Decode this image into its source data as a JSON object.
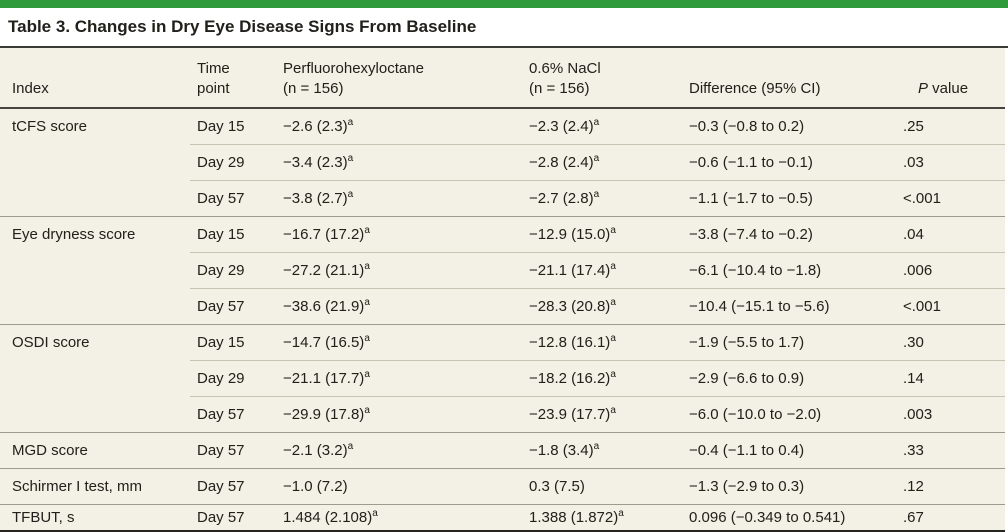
{
  "page": {
    "brand_bar_color": "#2e9a3c",
    "background_color": "#f3f0e5",
    "text_color": "#21201a"
  },
  "table": {
    "title": "Table 3. Changes in Dry Eye Disease Signs From Baseline",
    "columns": {
      "index": "Index",
      "time_line1": "Time",
      "time_line2": "point",
      "pfho_line1": "Perfluorohexyloctane",
      "pfho_line2": "(n = 156)",
      "nacl_line1": "0.6% NaCl",
      "nacl_line2": "(n = 156)",
      "diff": "Difference (95% CI)",
      "p_italic": "P",
      "p_rest": " value"
    },
    "rows": [
      {
        "index": "tCFS score",
        "time": "Day 15",
        "pfho": "−2.6 (2.3)",
        "pfho_sup": "a",
        "nacl": "−2.3 (2.4)",
        "nacl_sup": "a",
        "diff": "−0.3 (−0.8 to 0.2)",
        "p": ".25"
      },
      {
        "index": "",
        "time": "Day 29",
        "pfho": "−3.4 (2.3)",
        "pfho_sup": "a",
        "nacl": "−2.8 (2.4)",
        "nacl_sup": "a",
        "diff": "−0.6 (−1.1 to −0.1)",
        "p": ".03"
      },
      {
        "index": "",
        "time": "Day 57",
        "pfho": "−3.8 (2.7)",
        "pfho_sup": "a",
        "nacl": "−2.7 (2.8)",
        "nacl_sup": "a",
        "diff": "−1.1 (−1.7 to −0.5)",
        "p": "<.001"
      },
      {
        "index": "Eye dryness score",
        "time": "Day 15",
        "pfho": "−16.7 (17.2)",
        "pfho_sup": "a",
        "nacl": "−12.9 (15.0)",
        "nacl_sup": "a",
        "diff": "−3.8 (−7.4 to −0.2)",
        "p": ".04"
      },
      {
        "index": "",
        "time": "Day 29",
        "pfho": "−27.2 (21.1)",
        "pfho_sup": "a",
        "nacl": "−21.1 (17.4)",
        "nacl_sup": "a",
        "diff": "−6.1 (−10.4 to −1.8)",
        "p": ".006"
      },
      {
        "index": "",
        "time": "Day 57",
        "pfho": "−38.6 (21.9)",
        "pfho_sup": "a",
        "nacl": "−28.3 (20.8)",
        "nacl_sup": "a",
        "diff": "−10.4 (−15.1 to −5.6)",
        "p": "<.001"
      },
      {
        "index": "OSDI score",
        "time": "Day 15",
        "pfho": "−14.7 (16.5)",
        "pfho_sup": "a",
        "nacl": "−12.8 (16.1)",
        "nacl_sup": "a",
        "diff": "−1.9 (−5.5 to 1.7)",
        "p": ".30"
      },
      {
        "index": "",
        "time": "Day 29",
        "pfho": "−21.1 (17.7)",
        "pfho_sup": "a",
        "nacl": "−18.2 (16.2)",
        "nacl_sup": "a",
        "diff": "−2.9 (−6.6 to 0.9)",
        "p": ".14"
      },
      {
        "index": "",
        "time": "Day 57",
        "pfho": "−29.9 (17.8)",
        "pfho_sup": "a",
        "nacl": "−23.9 (17.7)",
        "nacl_sup": "a",
        "diff": "−6.0 (−10.0 to −2.0)",
        "p": ".003"
      },
      {
        "index": "MGD score",
        "time": "Day 57",
        "pfho": "−2.1 (3.2)",
        "pfho_sup": "a",
        "nacl": "−1.8 (3.4)",
        "nacl_sup": "a",
        "diff": "−0.4 (−1.1 to 0.4)",
        "p": ".33"
      },
      {
        "index": "Schirmer I test, mm",
        "time": "Day 57",
        "pfho": "−1.0 (7.2)",
        "pfho_sup": "",
        "nacl": "0.3 (7.5)",
        "nacl_sup": "",
        "diff": "−1.3 (−2.9 to 0.3)",
        "p": ".12"
      },
      {
        "index": "TFBUT, s",
        "time": "Day 57",
        "pfho": "1.484 (2.108)",
        "pfho_sup": "a",
        "nacl": "1.388 (1.872)",
        "nacl_sup": "a",
        "diff": "0.096 (−0.349 to 0.541)",
        "p": ".67"
      }
    ]
  }
}
